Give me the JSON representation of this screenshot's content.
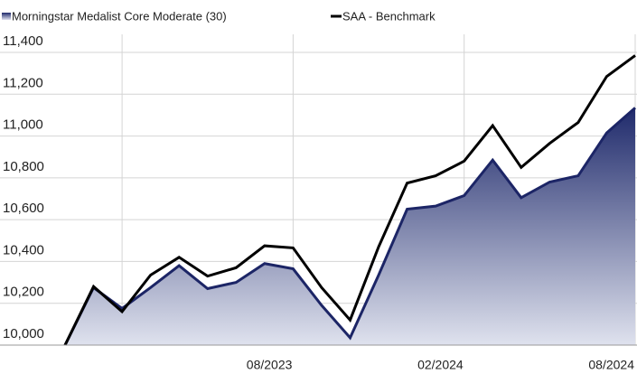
{
  "chart_data": {
    "type": "line",
    "categories": [
      null,
      null,
      null,
      null,
      null,
      null,
      null,
      null,
      "08/2023",
      null,
      null,
      null,
      null,
      null,
      "02/2024",
      null,
      null,
      null,
      null,
      null,
      "08/2024"
    ],
    "series": [
      {
        "name": "Morningstar Medalist Core Moderate (30)",
        "color": "#1c2566",
        "area": true,
        "values": [
          10000,
          10275,
          10175,
          10275,
          10380,
          10270,
          10300,
          10390,
          10365,
          10190,
          10035,
          10335,
          10650,
          10665,
          10715,
          10885,
          10705,
          10780,
          10810,
          11015,
          11135
        ]
      },
      {
        "name": "SAA - Benchmark",
        "color": "#000000",
        "values": [
          10000,
          10280,
          10160,
          10335,
          10420,
          10330,
          10370,
          10475,
          10465,
          10275,
          10120,
          10470,
          10775,
          10810,
          10880,
          11050,
          10850,
          10965,
          11065,
          11285,
          11385
        ]
      }
    ],
    "ylim": [
      10000,
      11400
    ],
    "yticks": [
      {
        "value": 10000,
        "label": "10,000"
      },
      {
        "value": 10200,
        "label": "10,200"
      },
      {
        "value": 10400,
        "label": "10,400"
      },
      {
        "value": 10600,
        "label": "10,600"
      },
      {
        "value": 10800,
        "label": "10,800"
      },
      {
        "value": 11000,
        "label": "11,000"
      },
      {
        "value": 11200,
        "label": "11,200"
      },
      {
        "value": 11400,
        "label": "11,400"
      }
    ],
    "grid": true
  }
}
